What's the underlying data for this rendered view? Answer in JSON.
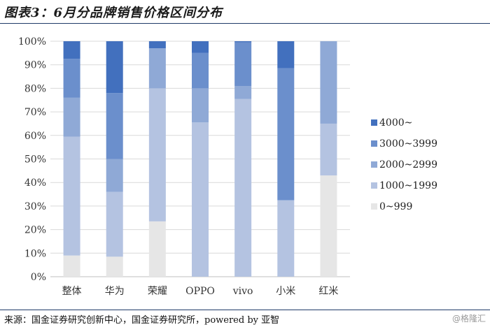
{
  "header": {
    "title": "图表3：6月分品牌销售价格区间分布"
  },
  "footer": {
    "source": "来源：国金证券研究创新中心，国金证券研究所，powered by 亚智",
    "watermark": "@格隆汇"
  },
  "chart_data": {
    "type": "bar",
    "stacked": true,
    "categories": [
      "整体",
      "华为",
      "荣耀",
      "OPPO",
      "vivo",
      "小米",
      "红米"
    ],
    "ylim": [
      0,
      100
    ],
    "yticks": [
      "0%",
      "10%",
      "20%",
      "30%",
      "40%",
      "50%",
      "60%",
      "70%",
      "80%",
      "90%",
      "100%"
    ],
    "legend_position": "right",
    "series": [
      {
        "name": "0~999",
        "color": "#e6e6e6",
        "values": [
          9,
          8.5,
          23.5,
          0,
          0,
          0,
          43
        ]
      },
      {
        "name": "1000~1999",
        "color": "#b4c3e1",
        "values": [
          50.5,
          27.5,
          56.5,
          65.5,
          75.5,
          32.5,
          22
        ]
      },
      {
        "name": "2000~2999",
        "color": "#8fa9d6",
        "values": [
          16.5,
          14,
          17,
          14.5,
          5.5,
          0,
          35
        ]
      },
      {
        "name": "3000~3999",
        "color": "#6b8fcc",
        "values": [
          16.5,
          28,
          0,
          15,
          18.5,
          56,
          0
        ]
      },
      {
        "name": "4000~",
        "color": "#4270be",
        "values": [
          7.5,
          22,
          3,
          5,
          0.5,
          11.5,
          0
        ]
      }
    ]
  }
}
